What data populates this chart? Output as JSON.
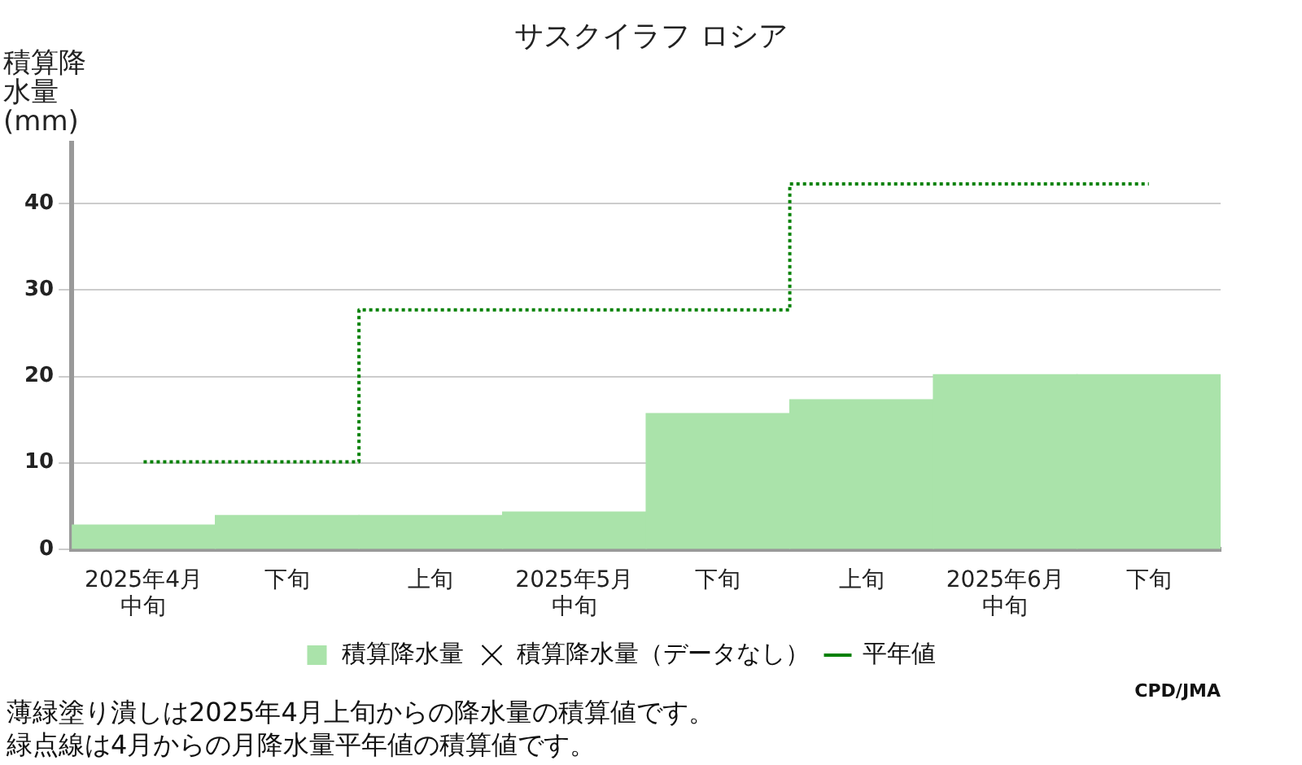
{
  "chart_data": {
    "type": "bar",
    "title": "サスクイラフ ロシア",
    "ylabel": "積算降水量(mm)",
    "categories": [
      "2025年4月中旬",
      "下旬",
      "上旬",
      "2025年5月中旬",
      "下旬",
      "上旬",
      "2025年6月中旬",
      "下旬"
    ],
    "series": [
      {
        "name": "積算降水量",
        "color": "#aae3aa",
        "values": [
          2.8,
          3.9,
          3.9,
          4.3,
          15.7,
          17.3,
          20.2,
          20.2
        ]
      },
      {
        "name": "積算降水量（データなし）",
        "type": "scatter",
        "color": "#000000",
        "marker": "cross",
        "values": [
          null,
          null,
          null,
          null,
          null,
          null,
          null,
          null
        ]
      },
      {
        "name": "平年値",
        "type": "step",
        "color": "#008000",
        "line_style": "dotted",
        "values": [
          10.1,
          10.1,
          27.7,
          27.7,
          27.7,
          42.3,
          42.3,
          42.3
        ]
      }
    ],
    "ylim": [
      0,
      47
    ],
    "yticks": [
      0,
      10,
      20,
      30,
      40
    ],
    "grid": "y",
    "legend": "bottom",
    "annotations": [
      "CPD/JMA",
      "薄緑塗り潰しは2025年4月上旬からの降水量の積算値です。",
      "緑点線は4月からの月降水量平年値の積算値です。"
    ]
  }
}
